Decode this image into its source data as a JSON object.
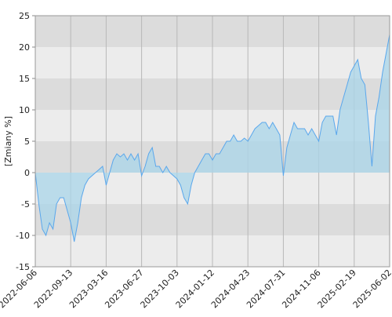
{
  "chart_data": {
    "type": "area",
    "y_label": "[Zmiany %]",
    "categories": [
      "2022-06-06",
      null,
      null,
      null,
      null,
      null,
      null,
      null,
      null,
      null,
      "2022-09-13",
      null,
      null,
      null,
      null,
      null,
      null,
      null,
      null,
      null,
      "2023-03-16",
      null,
      null,
      null,
      null,
      null,
      null,
      null,
      null,
      null,
      "2023-06-27",
      null,
      null,
      null,
      null,
      null,
      null,
      null,
      null,
      null,
      "2023-10-03",
      null,
      null,
      null,
      null,
      null,
      null,
      null,
      null,
      null,
      "2024-01-12",
      null,
      null,
      null,
      null,
      null,
      null,
      null,
      null,
      null,
      "2024-04-23",
      null,
      null,
      null,
      null,
      null,
      null,
      null,
      null,
      null,
      "2024-07-31",
      null,
      null,
      null,
      null,
      null,
      null,
      null,
      null,
      null,
      "2024-11-06",
      null,
      null,
      null,
      null,
      null,
      null,
      null,
      null,
      null,
      "2025-02-19",
      null,
      null,
      null,
      null,
      null,
      null,
      null,
      null,
      null,
      "2025-06-02"
    ],
    "series": [
      {
        "color": "#5aa7ec",
        "fill": "#a9d5ea",
        "values": [
          0,
          -5,
          -9,
          -10,
          -8,
          -9,
          -5,
          -4,
          -4,
          -6,
          -8,
          -11,
          -8,
          -4,
          -2,
          -1,
          -0.5,
          0,
          0.5,
          1,
          -2,
          0,
          2,
          3,
          2.5,
          3,
          2,
          3,
          2,
          3,
          -0.5,
          1,
          3,
          4,
          1,
          1,
          0,
          1,
          0,
          -0.5,
          -1,
          -2,
          -4,
          -5,
          -2,
          0,
          1,
          2,
          3,
          3,
          2,
          3,
          3,
          4,
          5,
          5,
          6,
          5,
          5,
          5.5,
          5,
          6,
          7,
          7.5,
          8,
          8,
          7,
          8,
          7,
          6,
          -0.5,
          4,
          6,
          8,
          7,
          7,
          7,
          6,
          7,
          6,
          5,
          8,
          9,
          9,
          9,
          6,
          10,
          12,
          14,
          16,
          17,
          18,
          15,
          14,
          8,
          1,
          9,
          12,
          16,
          19,
          22
        ]
      }
    ],
    "ylim": [
      -15,
      25
    ],
    "yticks": [
      -15,
      -10,
      -5,
      0,
      5,
      10,
      15,
      20,
      25
    ],
    "grid": true
  }
}
